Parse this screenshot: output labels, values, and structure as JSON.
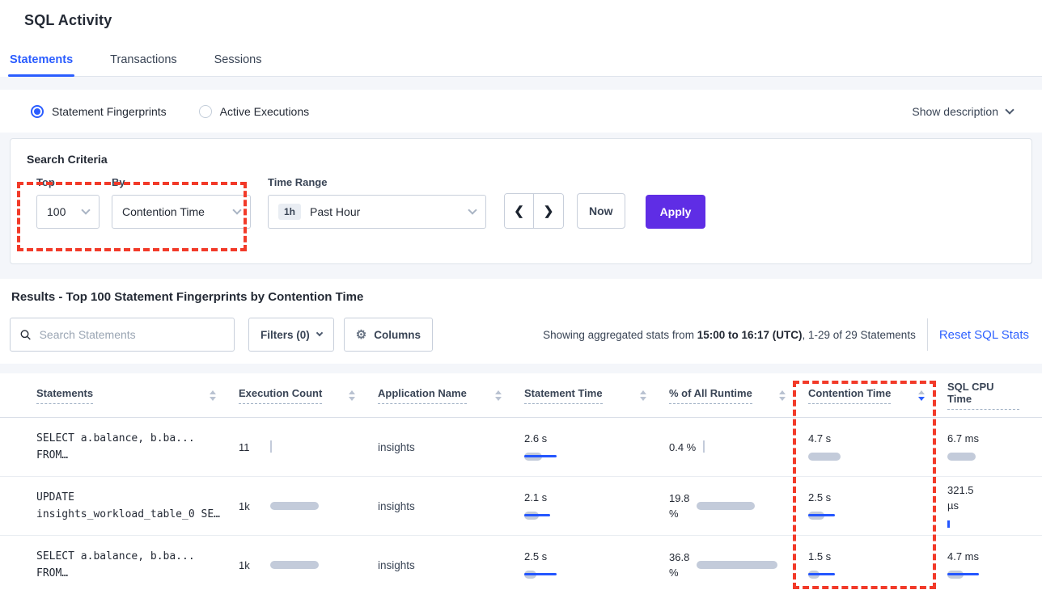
{
  "page": {
    "title": "SQL Activity"
  },
  "tabs": [
    {
      "label": "Statements",
      "active": true
    },
    {
      "label": "Transactions",
      "active": false
    },
    {
      "label": "Sessions",
      "active": false
    }
  ],
  "view_toggle": {
    "options": [
      {
        "label": "Statement Fingerprints",
        "selected": true
      },
      {
        "label": "Active Executions",
        "selected": false
      }
    ],
    "show_description": "Show description"
  },
  "search_criteria": {
    "heading": "Search Criteria",
    "top": {
      "label": "Top",
      "value": "100"
    },
    "by": {
      "label": "By",
      "value": "Contention Time"
    },
    "time_range": {
      "label": "Time Range",
      "badge": "1h",
      "value": "Past Hour"
    },
    "prev_icon": "❮",
    "next_icon": "❯",
    "now_label": "Now",
    "apply_label": "Apply"
  },
  "results": {
    "heading": "Results - Top 100 Statement Fingerprints by Contention Time",
    "search_placeholder": "Search Statements",
    "filters_label": "Filters (0)",
    "columns_label": "Columns",
    "gear_icon": "⚙",
    "stats_prefix": "Showing aggregated stats from ",
    "stats_bold": "15:00 to 16:17 (UTC)",
    "stats_suffix": ", 1-29 of 29 Statements",
    "reset_label": "Reset SQL Stats"
  },
  "table": {
    "headers": [
      "Statements",
      "Execution Count",
      "Application Name",
      "Statement Time",
      "% of All Runtime",
      "Contention Time",
      "SQL CPU Time"
    ],
    "sorted_column": "Contention Time",
    "sort_direction": "desc",
    "rows": [
      {
        "statement": "SELECT a.balance, b.ba...\nFROM…",
        "execution_count": "11",
        "application_name": "insights",
        "statement_time": "2.6 s",
        "pct_runtime": "0.4 %",
        "contention_time": "4.7 s",
        "sql_cpu_time": "6.7 ms",
        "bars": {
          "execution_count": {
            "tick": "gray"
          },
          "statement_time": {
            "gray": 22,
            "blue": 40
          },
          "pct_runtime": {
            "tick": "gray"
          },
          "contention_time": {
            "gray": 40
          },
          "sql_cpu_time": {
            "gray": 35
          }
        }
      },
      {
        "statement": "UPDATE\ninsights_workload_table_0 SE…",
        "execution_count": "1k",
        "application_name": "insights",
        "statement_time": "2.1 s",
        "pct_runtime": "19.8\n%",
        "contention_time": "2.5 s",
        "sql_cpu_time": "321.5\nµs",
        "bars": {
          "execution_count": {
            "gray": 60
          },
          "statement_time": {
            "gray": 18,
            "blue": 32
          },
          "pct_runtime": {
            "gray": 72
          },
          "contention_time": {
            "gray": 20,
            "blue": 33
          },
          "sql_cpu_time": {
            "tick": "blue"
          }
        }
      },
      {
        "statement": "SELECT a.balance, b.ba...\nFROM…",
        "execution_count": "1k",
        "application_name": "insights",
        "statement_time": "2.5 s",
        "pct_runtime": "36.8\n%",
        "contention_time": "1.5 s",
        "sql_cpu_time": "4.7 ms",
        "bars": {
          "execution_count": {
            "gray": 60
          },
          "statement_time": {
            "gray": 15,
            "blue": 40
          },
          "pct_runtime": {
            "gray": 100
          },
          "contention_time": {
            "gray": 14,
            "blue": 33
          },
          "sql_cpu_time": {
            "gray": 20,
            "blue": 39
          }
        }
      }
    ]
  },
  "colors": {
    "accent_blue": "#2b5dff",
    "apply_purple": "#5f2de5",
    "annotation_red": "#f23a29",
    "bar_gray": "#c3cbda",
    "bar_blue": "#2456ff"
  }
}
